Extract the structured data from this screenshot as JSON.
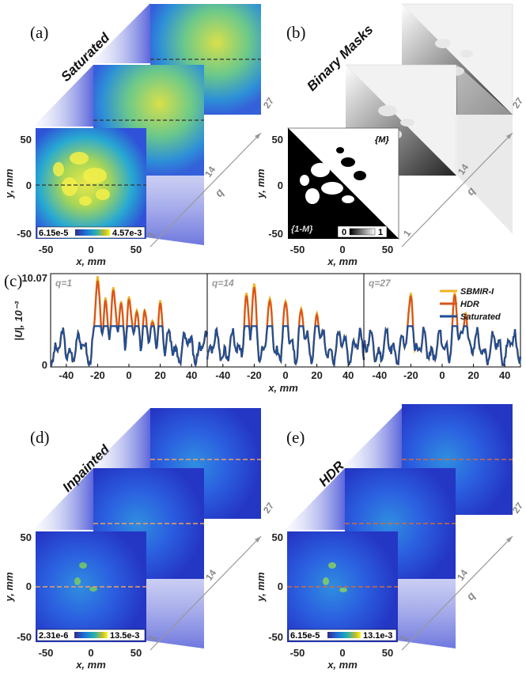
{
  "panels": {
    "a": {
      "label": "(a)",
      "title": "Saturated",
      "colorbar_min": "6.15e-5",
      "colorbar_max": "4.57e-3"
    },
    "b": {
      "label": "(b)",
      "title": "Binary Masks",
      "mask_label": "{M}",
      "inverse_label": "{1-M}",
      "colorbar_min": "0",
      "colorbar_max": "1"
    },
    "c": {
      "label": "(c)"
    },
    "d": {
      "label": "(d)",
      "title": "Inpainted",
      "colorbar_min": "2.31e-6",
      "colorbar_max": "13.5e-3"
    },
    "e": {
      "label": "(e)",
      "title": "HDR",
      "colorbar_min": "6.15e-5",
      "colorbar_max": "13.1e-3"
    }
  },
  "image_axes": {
    "xlabel": "x, mm",
    "ylabel": "y, mm",
    "x_ticks": [
      "-50",
      "0",
      "50"
    ],
    "y_ticks": [
      "50",
      "0",
      "-50"
    ]
  },
  "stack_axis": {
    "label": "q",
    "ticks": [
      "1",
      "14",
      "27"
    ]
  },
  "colors": {
    "saturated": "#1f4e96",
    "hdr": "#d9541e",
    "sbmir": "#f0b323",
    "field_bg": "#2438c8",
    "field_mid": "#27a9d2",
    "field_hot": "#e8e84a"
  },
  "chart_data": {
    "type": "line",
    "ylabel": "|U|, 10⁻³",
    "xlabel": "x, mm",
    "y_ticks": [
      "0",
      "10.07"
    ],
    "ylim": [
      0,
      10.07
    ],
    "x_ticks": [
      "-40",
      "-20",
      "0",
      "20",
      "40"
    ],
    "xlim": [
      -50,
      50
    ],
    "legend": [
      "SBMIR-I",
      "HDR",
      "Saturated"
    ],
    "legend_position": "top-right",
    "subplots": [
      {
        "label": "q=1",
        "peaks_x": [
          -20,
          -15,
          -10,
          -5,
          0,
          5,
          10,
          15,
          20
        ],
        "hdr_peaks": [
          9.3,
          7.2,
          8.3,
          6.9,
          7.3,
          5.9,
          6.0,
          4.8,
          6.9
        ],
        "sbmir_peaks": [
          9.8,
          7.5,
          8.6,
          7.1,
          7.6,
          6.1,
          6.2,
          5.0,
          7.2
        ]
      },
      {
        "label": "q=14",
        "peaks_x": [
          -25,
          -20,
          -10,
          0,
          10,
          20
        ],
        "hdr_peaks": [
          7.7,
          8.6,
          7.1,
          6.9,
          6.1,
          5.6
        ],
        "sbmir_peaks": [
          8.0,
          9.0,
          7.4,
          7.1,
          6.3,
          5.8
        ]
      },
      {
        "label": "q=27",
        "peaks_x": [
          -20,
          8,
          15
        ],
        "hdr_peaks": [
          7.7,
          7.8,
          5.7
        ],
        "sbmir_peaks": [
          8.0,
          8.0,
          5.9
        ]
      }
    ],
    "saturated_clip": 4.4
  }
}
